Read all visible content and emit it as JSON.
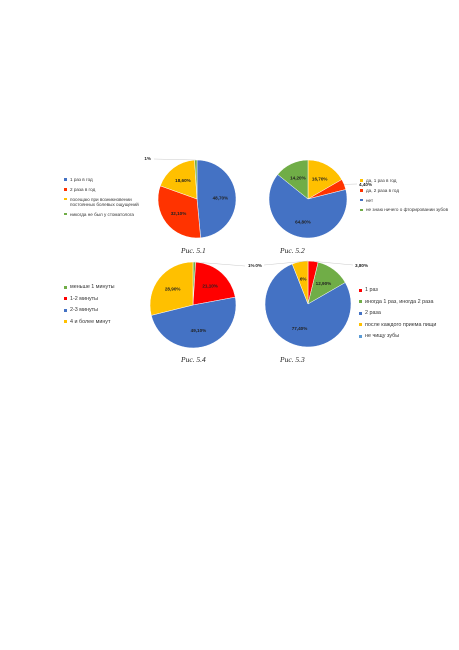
{
  "chart_data": [
    {
      "id": "fig-5-1",
      "type": "pie",
      "caption": "Рис. 5.1",
      "colors": [
        "#4472C4",
        "#FF3300",
        "#FFC000",
        "#70AD47"
      ],
      "slices": [
        {
          "label": "1 раз в год",
          "value": 48.7,
          "data_label": "48,70%"
        },
        {
          "label": "2 раза в год",
          "value": 32.1,
          "data_label": "32,10%"
        },
        {
          "label": "посещаю при возникновении постоянных болевых ощущений",
          "value": 18.6,
          "data_label": "18,60%"
        },
        {
          "label": "никогда не был у стоматолога",
          "value": 1,
          "data_label": "1%"
        }
      ],
      "legend_position": "left"
    },
    {
      "id": "fig-5-2",
      "type": "pie",
      "caption": "Рис. 5.2",
      "colors": [
        "#FFC000",
        "#FF3300",
        "#4472C4",
        "#70AD47"
      ],
      "slices": [
        {
          "label": "да, 1 раз в год",
          "value": 16.7,
          "data_label": "16,70%"
        },
        {
          "label": "да, 2 раза в год",
          "value": 4.4,
          "data_label": "4,40%"
        },
        {
          "label": "нет",
          "value": 64.8,
          "data_label": "64,80%"
        },
        {
          "label": "не знаю ничего о фторировании зубов",
          "value": 14.2,
          "data_label": "14,20%"
        }
      ],
      "legend_position": "right"
    },
    {
      "id": "fig-5-4",
      "type": "pie",
      "caption": "Рис. 5.4",
      "colors": [
        "#70AD47",
        "#FF0000",
        "#4472C4",
        "#FFC000"
      ],
      "slices": [
        {
          "label": "меньше 1 минуты",
          "value": 1,
          "data_label": "1%"
        },
        {
          "label": "1-2 минуты",
          "value": 21.1,
          "data_label": "21,10%"
        },
        {
          "label": "2-3 минуты",
          "value": 49.1,
          "data_label": "49,10%"
        },
        {
          "label": "4 и более минут",
          "value": 28.9,
          "data_label": "28,90%"
        }
      ],
      "legend_position": "left"
    },
    {
      "id": "fig-5-3",
      "type": "pie",
      "caption": "Рис. 5.3",
      "colors": [
        "#FF0000",
        "#70AD47",
        "#4472C4",
        "#FFC000",
        "#5B9BD5"
      ],
      "slices": [
        {
          "label": "1 раз",
          "value": 3.8,
          "data_label": "3,80%"
        },
        {
          "label": "иногда 1 раз, иногда 2 раза",
          "value": 12.9,
          "data_label": "12,90%"
        },
        {
          "label": "2 раза",
          "value": 77.4,
          "data_label": "77,40%"
        },
        {
          "label": "после каждого приема пищи",
          "value": 6,
          "data_label": "6%"
        },
        {
          "label": "не чищу зубы",
          "value": 0,
          "data_label": "0%"
        }
      ],
      "legend_position": "right"
    }
  ]
}
